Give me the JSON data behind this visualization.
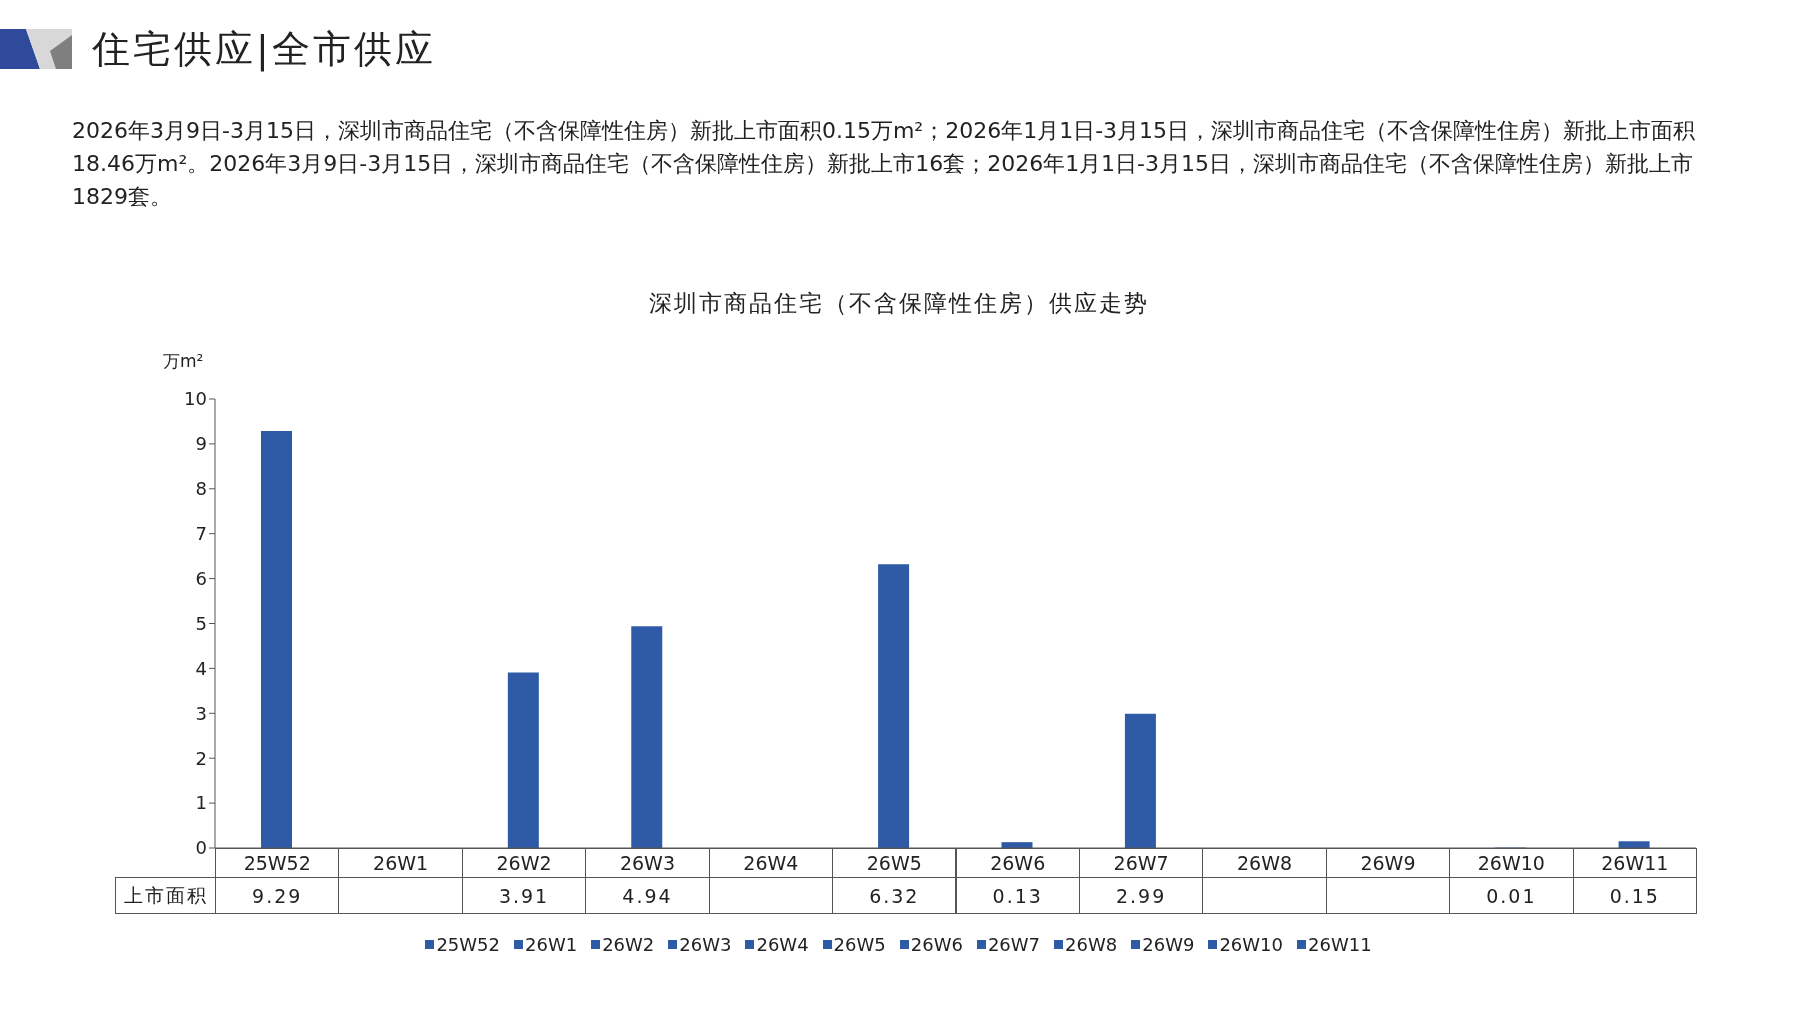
{
  "chart_data": {
    "type": "bar",
    "title": "深圳市商品住宅（不含保障性住房）供应走势",
    "annotations": [
      "住宅供应|全市供应",
      "2026年3月9日-3月15日，深圳市商品住宅（不含保障性住房）新批上市面积0.15万m²；2026年1月1日-3月15日，深圳市商品住宅（不含保障性住房）新批上市面积18.46万m²。2026年3月9日-3月15日，深圳市商品住宅（不含保障性住房）新批上市16套；2026年1月1日-3月15日，深圳市商品住宅（不含保障性住房）新批上市1829套。"
    ],
    "ylabel": "万m²",
    "categories": [
      "25W52",
      "26W1",
      "26W2",
      "26W3",
      "26W4",
      "26W5",
      "26W6",
      "26W7",
      "26W8",
      "26W9",
      "26W10",
      "26W11"
    ],
    "series": [
      {
        "name": "上市面积",
        "color": "#2f5aa6",
        "values": [
          9.29,
          null,
          3.91,
          4.94,
          null,
          6.32,
          0.13,
          2.99,
          null,
          null,
          0.01,
          0.15
        ]
      }
    ],
    "ylim": [
      0,
      10
    ],
    "yticks": [
      0,
      1,
      2,
      3,
      4,
      5,
      6,
      7,
      8,
      9,
      10
    ],
    "data_labels": true,
    "legend": "bottom",
    "grid": false
  }
}
